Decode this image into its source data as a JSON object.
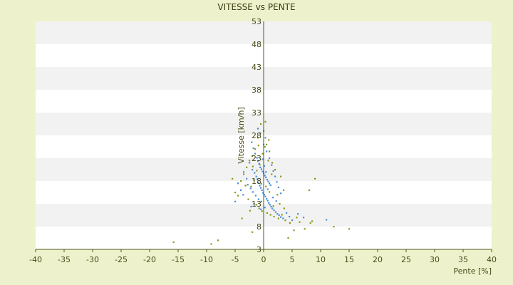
{
  "chart_data": {
    "type": "scatter",
    "title": "VITESSE vs PENTE",
    "xlabel": "Pente [%]",
    "ylabel": "Vitesse [km/h]",
    "xlim": [
      -40,
      40
    ],
    "ylim": [
      3,
      53
    ],
    "x_ticks": [
      "-40",
      "-35",
      "-30",
      "-25",
      "-20",
      "-15",
      "-10",
      "-5",
      "0",
      "5",
      "10",
      "15",
      "20",
      "25",
      "30",
      "35",
      "40"
    ],
    "y_ticks": [
      "3",
      "8",
      "13",
      "18",
      "23",
      "28",
      "33",
      "38",
      "43",
      "48",
      "53"
    ],
    "grid": true,
    "legend": "none",
    "colors": {
      "background": "#eef2cc",
      "plot_band_light": "#ffffff",
      "plot_band_dark": "#f2f2f2",
      "axis": "#4d5a1a",
      "series_a": "#4a90d9",
      "series_b": "#8a9a1a"
    },
    "series": [
      {
        "color": "#4a90d9",
        "points": [
          [
            -2.1,
            26.5
          ],
          [
            -1.8,
            25.2
          ],
          [
            -1.5,
            24.0
          ],
          [
            -1.2,
            23.1
          ],
          [
            -1.0,
            22.4
          ],
          [
            -0.8,
            21.8
          ],
          [
            -0.6,
            21.0
          ],
          [
            -0.4,
            20.6
          ],
          [
            -0.2,
            20.1
          ],
          [
            0.0,
            19.7
          ],
          [
            0.2,
            19.2
          ],
          [
            0.4,
            18.8
          ],
          [
            0.6,
            18.3
          ],
          [
            0.8,
            17.9
          ],
          [
            1.0,
            17.5
          ],
          [
            1.2,
            17.1
          ],
          [
            -2.5,
            22.0
          ],
          [
            -2.0,
            20.5
          ],
          [
            -1.6,
            19.8
          ],
          [
            -1.3,
            19.0
          ],
          [
            -1.1,
            18.4
          ],
          [
            -0.9,
            17.6
          ],
          [
            -0.7,
            17.0
          ],
          [
            -0.5,
            16.5
          ],
          [
            -0.3,
            16.0
          ],
          [
            -0.1,
            15.4
          ],
          [
            0.1,
            15.0
          ],
          [
            0.3,
            14.6
          ],
          [
            0.5,
            14.1
          ],
          [
            0.7,
            13.7
          ],
          [
            0.9,
            13.2
          ],
          [
            1.1,
            12.8
          ],
          [
            1.3,
            12.4
          ],
          [
            1.5,
            12.0
          ],
          [
            1.8,
            11.6
          ],
          [
            2.1,
            11.2
          ],
          [
            2.4,
            10.8
          ],
          [
            2.7,
            10.5
          ],
          [
            3.0,
            10.1
          ],
          [
            3.4,
            9.8
          ],
          [
            -3.5,
            20.0
          ],
          [
            -3.0,
            18.5
          ],
          [
            -2.8,
            17.2
          ],
          [
            -2.3,
            16.4
          ],
          [
            -1.9,
            15.6
          ],
          [
            -1.4,
            14.8
          ],
          [
            -0.9,
            14.0
          ],
          [
            -0.4,
            13.5
          ],
          [
            0.0,
            26.0
          ],
          [
            0.3,
            27.5
          ],
          [
            -0.6,
            28.5
          ],
          [
            -1.0,
            29.5
          ],
          [
            0.5,
            24.5
          ],
          [
            1.0,
            23.0
          ],
          [
            1.4,
            21.5
          ],
          [
            1.7,
            20.2
          ],
          [
            2.0,
            19.0
          ],
          [
            2.3,
            17.8
          ],
          [
            2.6,
            16.6
          ],
          [
            3.0,
            15.3
          ],
          [
            -4.5,
            17.5
          ],
          [
            -4.0,
            16.0
          ],
          [
            -3.6,
            15.0
          ],
          [
            -5.0,
            13.5
          ],
          [
            4.0,
            11.0
          ],
          [
            4.5,
            10.2
          ],
          [
            5.0,
            9.4
          ],
          [
            6.0,
            10.8
          ],
          [
            7.0,
            10.0
          ],
          [
            11.0,
            9.5
          ],
          [
            -0.2,
            22.8
          ],
          [
            0.1,
            21.3
          ],
          [
            0.4,
            20.0
          ],
          [
            0.7,
            16.2
          ],
          [
            -1.7,
            13.0
          ],
          [
            -2.2,
            12.4
          ],
          [
            -0.5,
            11.8
          ],
          [
            0.2,
            12.2
          ],
          [
            1.6,
            14.4
          ],
          [
            2.2,
            13.6
          ]
        ]
      },
      {
        "color": "#8a9a1a",
        "points": [
          [
            -15.8,
            4.6
          ],
          [
            -9.2,
            4.2
          ],
          [
            -8.0,
            5.0
          ],
          [
            -2.0,
            6.8
          ],
          [
            -3.8,
            9.8
          ],
          [
            4.3,
            5.5
          ],
          [
            5.3,
            7.2
          ],
          [
            7.2,
            7.5
          ],
          [
            8.2,
            8.8
          ],
          [
            8.5,
            9.2
          ],
          [
            12.3,
            8.0
          ],
          [
            15.0,
            7.5
          ],
          [
            8.0,
            16.0
          ],
          [
            9.0,
            18.5
          ],
          [
            3.5,
            16.0
          ],
          [
            3.0,
            19.0
          ],
          [
            2.0,
            20.5
          ],
          [
            1.5,
            22.0
          ],
          [
            1.0,
            24.5
          ],
          [
            0.5,
            26.0
          ],
          [
            0.0,
            29.0
          ],
          [
            -0.5,
            30.5
          ],
          [
            0.3,
            31.0
          ],
          [
            -1.0,
            27.5
          ],
          [
            -1.5,
            25.0
          ],
          [
            -2.0,
            23.5
          ],
          [
            -2.5,
            22.5
          ],
          [
            -3.0,
            21.0
          ],
          [
            -3.5,
            19.5
          ],
          [
            -4.0,
            18.0
          ],
          [
            -5.5,
            18.5
          ],
          [
            -5.0,
            15.5
          ],
          [
            -4.5,
            14.8
          ],
          [
            -1.3,
            12.8
          ],
          [
            -0.8,
            12.0
          ],
          [
            -0.3,
            11.4
          ],
          [
            0.6,
            11.0
          ],
          [
            1.2,
            10.6
          ],
          [
            1.8,
            10.2
          ],
          [
            2.6,
            9.8
          ],
          [
            3.2,
            10.6
          ],
          [
            3.8,
            9.4
          ],
          [
            -2.7,
            14.0
          ],
          [
            -2.2,
            16.8
          ],
          [
            -1.7,
            18.2
          ],
          [
            -1.2,
            20.3
          ],
          [
            -0.7,
            21.6
          ],
          [
            -0.2,
            24.0
          ],
          [
            0.2,
            25.5
          ],
          [
            0.8,
            22.5
          ],
          [
            1.4,
            19.5
          ],
          [
            2.4,
            15.0
          ],
          [
            2.8,
            13.0
          ],
          [
            3.6,
            12.0
          ],
          [
            4.6,
            8.8
          ],
          [
            -0.4,
            17.4
          ],
          [
            0.4,
            16.8
          ],
          [
            1.0,
            15.6
          ],
          [
            -1.9,
            21.2
          ],
          [
            -3.2,
            17.0
          ],
          [
            0.9,
            27.0
          ],
          [
            -0.9,
            25.8
          ],
          [
            1.7,
            12.5
          ],
          [
            -2.4,
            11.5
          ],
          [
            5.8,
            10.0
          ],
          [
            6.3,
            9.0
          ]
        ]
      }
    ]
  }
}
